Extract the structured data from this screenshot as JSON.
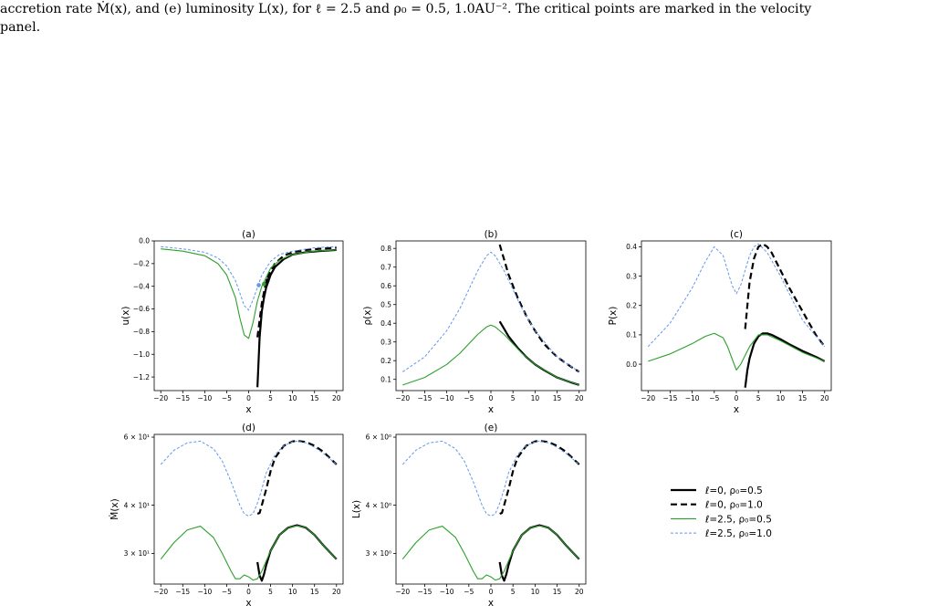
{
  "caption": {
    "line1": "accretion rate Ṁ(x), and (e) luminosity L(x), for ℓ = 2.5 and ρ₀ = 0.5, 1.0AU⁻². The critical points are marked in the velocity",
    "line2": "panel."
  },
  "legend": {
    "entries": [
      "ℓ=0, ρ₀=0.5",
      "ℓ=0, ρ₀=1.0",
      "ℓ=2.5, ρ₀=0.5",
      "ℓ=2.5, ρ₀=1.0"
    ]
  },
  "colors": {
    "black": "#000000",
    "green": "#2ca02c",
    "blue": "#6495ed"
  },
  "chart_data": [
    {
      "id": "a",
      "type": "line",
      "title": "(a)",
      "xlabel": "x",
      "ylabel": "u(x)",
      "xlim": [
        -21.5,
        21.5
      ],
      "ylim": [
        -1.32,
        0.0
      ],
      "xticks": [
        -20,
        -15,
        -10,
        -5,
        0,
        5,
        10,
        15,
        20
      ],
      "xticklabels": [
        "−20",
        "−15",
        "−10",
        "−5",
        "0",
        "5",
        "10",
        "15",
        "20"
      ],
      "yticks": [
        0.0,
        -0.2,
        -0.4,
        -0.6,
        -0.8,
        -1.0,
        -1.2
      ],
      "yticklabels": [
        "0.0",
        "−0.2",
        "−0.4",
        "−0.6",
        "−0.8",
        "−1.0",
        "−1.2"
      ],
      "series": [
        {
          "style": "black-solid",
          "x": [
            2.0,
            2.5,
            3,
            3.5,
            4,
            5,
            6,
            8,
            10,
            13,
            16,
            20
          ],
          "y": [
            -1.29,
            -0.85,
            -0.62,
            -0.5,
            -0.41,
            -0.3,
            -0.23,
            -0.16,
            -0.12,
            -0.1,
            -0.09,
            -0.08
          ]
        },
        {
          "style": "black-dash",
          "x": [
            2.0,
            2.5,
            3,
            3.5,
            4,
            5,
            6,
            8,
            10,
            13,
            16,
            20
          ],
          "y": [
            -0.85,
            -0.7,
            -0.55,
            -0.45,
            -0.36,
            -0.26,
            -0.2,
            -0.13,
            -0.1,
            -0.08,
            -0.07,
            -0.06
          ]
        },
        {
          "style": "green",
          "x": [
            -20,
            -15,
            -10,
            -7,
            -5,
            -3,
            -2,
            -1,
            0,
            1,
            2,
            3,
            5,
            7,
            10,
            15,
            20
          ],
          "y": [
            -0.07,
            -0.09,
            -0.13,
            -0.2,
            -0.3,
            -0.5,
            -0.68,
            -0.83,
            -0.86,
            -0.72,
            -0.53,
            -0.4,
            -0.24,
            -0.17,
            -0.12,
            -0.09,
            -0.08
          ]
        },
        {
          "style": "blue",
          "x": [
            -20,
            -15,
            -10,
            -7,
            -5,
            -3,
            -2,
            -1,
            0,
            1,
            2,
            3,
            5,
            7,
            10,
            15,
            20
          ],
          "y": [
            -0.05,
            -0.07,
            -0.1,
            -0.15,
            -0.22,
            -0.35,
            -0.46,
            -0.57,
            -0.61,
            -0.52,
            -0.41,
            -0.3,
            -0.18,
            -0.12,
            -0.09,
            -0.06,
            -0.05
          ]
        }
      ],
      "critical_points": [
        {
          "x": 2.3,
          "y": -0.39,
          "color": "#6495ed"
        },
        {
          "x": 3.5,
          "y": -0.38,
          "color": "#2ca02c"
        },
        {
          "x": 4.3,
          "y": -0.35,
          "color": "#000000"
        }
      ]
    },
    {
      "id": "b",
      "type": "line",
      "title": "(b)",
      "xlabel": "x",
      "ylabel": "ρ(x)",
      "xlim": [
        -21.5,
        21.5
      ],
      "ylim": [
        0.04,
        0.84
      ],
      "xticks": [
        -20,
        -15,
        -10,
        -5,
        0,
        5,
        10,
        15,
        20
      ],
      "xticklabels": [
        "−20",
        "−15",
        "−10",
        "−5",
        "0",
        "5",
        "10",
        "15",
        "20"
      ],
      "yticks": [
        0.1,
        0.2,
        0.3,
        0.4,
        0.5,
        0.6,
        0.7,
        0.8
      ],
      "yticklabels": [
        "0.1",
        "0.2",
        "0.3",
        "0.4",
        "0.5",
        "0.6",
        "0.7",
        "0.8"
      ],
      "series": [
        {
          "style": "black-solid",
          "x": [
            2.0,
            3,
            4,
            6,
            8,
            10,
            12,
            15,
            18,
            20
          ],
          "y": [
            0.41,
            0.37,
            0.33,
            0.27,
            0.22,
            0.18,
            0.15,
            0.11,
            0.085,
            0.07
          ]
        },
        {
          "style": "black-dash",
          "x": [
            2.0,
            3,
            4,
            6,
            8,
            10,
            12,
            15,
            18,
            20
          ],
          "y": [
            0.82,
            0.74,
            0.66,
            0.54,
            0.44,
            0.36,
            0.29,
            0.22,
            0.17,
            0.14
          ]
        },
        {
          "style": "green",
          "x": [
            -20,
            -15,
            -10,
            -7,
            -5,
            -3,
            -1,
            0,
            1,
            3,
            5,
            7,
            10,
            15,
            20
          ],
          "y": [
            0.07,
            0.11,
            0.18,
            0.24,
            0.29,
            0.34,
            0.38,
            0.39,
            0.38,
            0.34,
            0.29,
            0.24,
            0.18,
            0.11,
            0.07
          ]
        },
        {
          "style": "blue",
          "x": [
            -20,
            -15,
            -10,
            -7,
            -5,
            -3,
            -1,
            0,
            1,
            3,
            5,
            7,
            10,
            15,
            20
          ],
          "y": [
            0.14,
            0.22,
            0.36,
            0.48,
            0.58,
            0.68,
            0.76,
            0.78,
            0.76,
            0.68,
            0.58,
            0.48,
            0.36,
            0.22,
            0.14
          ]
        }
      ]
    },
    {
      "id": "c",
      "type": "line",
      "title": "(c)",
      "xlabel": "x",
      "ylabel": "P(x)",
      "xlim": [
        -21.5,
        21.5
      ],
      "ylim": [
        -0.09,
        0.42
      ],
      "xticks": [
        -20,
        -15,
        -10,
        -5,
        0,
        5,
        10,
        15,
        20
      ],
      "xticklabels": [
        "−20",
        "−15",
        "−10",
        "−5",
        "0",
        "5",
        "10",
        "15",
        "20"
      ],
      "yticks": [
        0.0,
        0.1,
        0.2,
        0.3,
        0.4
      ],
      "yticklabels": [
        "0.0",
        "0.1",
        "0.2",
        "0.3",
        "0.4"
      ],
      "series": [
        {
          "style": "black-solid",
          "x": [
            2.0,
            2.5,
            3,
            4,
            5,
            6,
            7,
            8,
            10,
            12,
            15,
            18,
            20
          ],
          "y": [
            -0.08,
            -0.02,
            0.02,
            0.07,
            0.095,
            0.105,
            0.105,
            0.1,
            0.085,
            0.068,
            0.045,
            0.025,
            0.01
          ]
        },
        {
          "style": "black-dash",
          "x": [
            2.0,
            2.5,
            3,
            4,
            5,
            6,
            7,
            8,
            10,
            12,
            15,
            18,
            20
          ],
          "y": [
            0.12,
            0.2,
            0.28,
            0.36,
            0.4,
            0.41,
            0.4,
            0.38,
            0.32,
            0.26,
            0.18,
            0.1,
            0.06
          ]
        },
        {
          "style": "green",
          "x": [
            -20,
            -15,
            -10,
            -7,
            -5,
            -3,
            -2,
            -1,
            0,
            1,
            2,
            3,
            5,
            7,
            10,
            15,
            20
          ],
          "y": [
            0.01,
            0.035,
            0.07,
            0.095,
            0.105,
            0.09,
            0.06,
            0.02,
            -0.02,
            0.0,
            0.03,
            0.06,
            0.1,
            0.1,
            0.08,
            0.04,
            0.01
          ]
        },
        {
          "style": "blue",
          "x": [
            -20,
            -15,
            -10,
            -7,
            -5,
            -3,
            -2,
            -1,
            0,
            1,
            2,
            3,
            4,
            5,
            7,
            10,
            15,
            20
          ],
          "y": [
            0.06,
            0.14,
            0.26,
            0.35,
            0.4,
            0.37,
            0.32,
            0.27,
            0.24,
            0.27,
            0.32,
            0.37,
            0.4,
            0.41,
            0.38,
            0.3,
            0.15,
            0.06
          ]
        }
      ]
    },
    {
      "id": "d",
      "type": "line",
      "title": "(d)",
      "xlabel": "x",
      "ylabel": "Ṁ(x)",
      "xlim": [
        -21.5,
        21.5
      ],
      "ylim": [
        25.0,
        61.0
      ],
      "yscale": "log",
      "xticks": [
        -20,
        -15,
        -10,
        -5,
        0,
        5,
        10,
        15,
        20
      ],
      "xticklabels": [
        "−20",
        "−15",
        "−10",
        "−5",
        "0",
        "5",
        "10",
        "15",
        "20"
      ],
      "yticks": [
        30,
        40,
        60
      ],
      "yticklabels": [
        "3 × 10¹",
        "4 × 10¹",
        "6 × 10¹"
      ],
      "series": [
        {
          "style": "black-solid",
          "x": [
            2.0,
            2.5,
            3,
            3.5,
            4,
            5,
            7,
            9,
            11,
            13,
            15,
            17,
            20
          ],
          "y": [
            28.5,
            26.3,
            25.5,
            26.5,
            28.0,
            30.5,
            33.5,
            35.0,
            35.5,
            35.0,
            33.5,
            31.5,
            29.0
          ]
        },
        {
          "style": "black-dash",
          "x": [
            2.0,
            2.5,
            3,
            4,
            5,
            6,
            8,
            10,
            11,
            13,
            15,
            17,
            20
          ],
          "y": [
            38.0,
            38.2,
            40.0,
            44.0,
            49.0,
            53.0,
            57.0,
            58.5,
            58.7,
            58.3,
            57.0,
            55.0,
            51.0
          ]
        },
        {
          "style": "green",
          "x": [
            -20,
            -17,
            -14,
            -11,
            -8,
            -6,
            -4,
            -3,
            -2,
            -1,
            0,
            1,
            2,
            3,
            5,
            7,
            9,
            11,
            13,
            15,
            17,
            20
          ],
          "y": [
            29.0,
            32.0,
            34.5,
            35.3,
            33.0,
            30.0,
            27.0,
            25.8,
            25.8,
            26.4,
            26.1,
            25.6,
            25.8,
            27.0,
            30.5,
            33.5,
            35.0,
            35.4,
            35.0,
            33.5,
            31.5,
            29.0
          ]
        },
        {
          "style": "blue",
          "x": [
            -20,
            -17,
            -14,
            -11,
            -8,
            -6,
            -4,
            -2,
            -1,
            0,
            1,
            2,
            3,
            4,
            6,
            8,
            10,
            11,
            13,
            15,
            17,
            20
          ],
          "y": [
            51.0,
            55.5,
            58.0,
            58.6,
            56.0,
            52.0,
            46.0,
            40.0,
            38.0,
            37.5,
            38.0,
            40.5,
            44.0,
            48.5,
            54.0,
            57.0,
            58.4,
            58.6,
            58.0,
            56.5,
            54.5,
            51.0
          ]
        }
      ]
    },
    {
      "id": "e",
      "type": "line",
      "title": "(e)",
      "xlabel": "x",
      "ylabel": "L(x)",
      "xlim": [
        -21.5,
        21.5
      ],
      "ylim": [
        2.5,
        6.1
      ],
      "yscale": "log",
      "xticks": [
        -20,
        -15,
        -10,
        -5,
        0,
        5,
        10,
        15,
        20
      ],
      "xticklabels": [
        "−20",
        "−15",
        "−10",
        "−5",
        "0",
        "5",
        "10",
        "15",
        "20"
      ],
      "yticks": [
        3,
        4,
        6
      ],
      "yticklabels": [
        "3 × 10⁰",
        "4 × 10⁰",
        "6 × 10⁰"
      ],
      "series": [
        {
          "style": "black-solid",
          "x": [
            2.0,
            2.5,
            3,
            3.5,
            4,
            5,
            7,
            9,
            11,
            13,
            15,
            17,
            20
          ],
          "y": [
            2.85,
            2.63,
            2.55,
            2.65,
            2.8,
            3.05,
            3.35,
            3.5,
            3.55,
            3.5,
            3.35,
            3.15,
            2.9
          ]
        },
        {
          "style": "black-dash",
          "x": [
            2.0,
            2.5,
            3,
            4,
            5,
            6,
            8,
            10,
            11,
            13,
            15,
            17,
            20
          ],
          "y": [
            3.8,
            3.82,
            4.0,
            4.4,
            4.9,
            5.3,
            5.7,
            5.85,
            5.87,
            5.83,
            5.7,
            5.5,
            5.1
          ]
        },
        {
          "style": "green",
          "x": [
            -20,
            -17,
            -14,
            -11,
            -8,
            -6,
            -4,
            -3,
            -2,
            -1,
            0,
            1,
            2,
            3,
            5,
            7,
            9,
            11,
            13,
            15,
            17,
            20
          ],
          "y": [
            2.9,
            3.2,
            3.45,
            3.53,
            3.3,
            3.0,
            2.7,
            2.58,
            2.58,
            2.64,
            2.61,
            2.56,
            2.58,
            2.7,
            3.05,
            3.35,
            3.5,
            3.54,
            3.5,
            3.35,
            3.15,
            2.9
          ]
        },
        {
          "style": "blue",
          "x": [
            -20,
            -17,
            -14,
            -11,
            -8,
            -6,
            -4,
            -2,
            -1,
            0,
            1,
            2,
            3,
            4,
            6,
            8,
            10,
            11,
            13,
            15,
            17,
            20
          ],
          "y": [
            5.1,
            5.55,
            5.8,
            5.86,
            5.6,
            5.2,
            4.6,
            4.0,
            3.8,
            3.75,
            3.8,
            4.05,
            4.4,
            4.85,
            5.4,
            5.7,
            5.84,
            5.86,
            5.8,
            5.65,
            5.45,
            5.1
          ]
        }
      ]
    }
  ]
}
